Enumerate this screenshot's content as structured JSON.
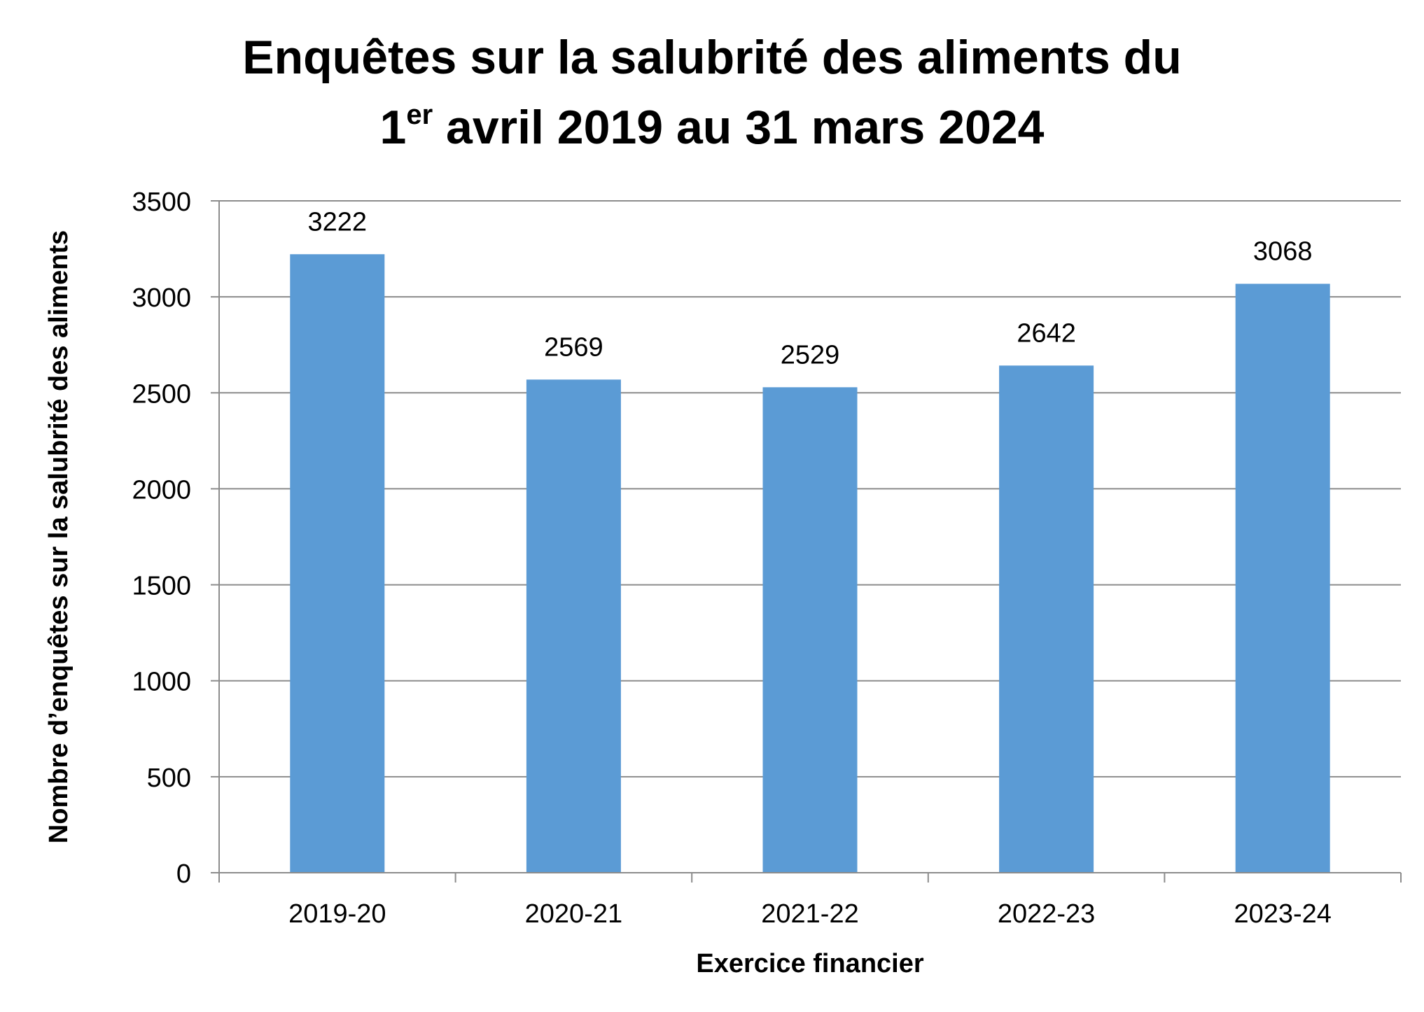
{
  "chart_data": {
    "type": "bar",
    "title": "Enquêtes sur la salubrité des aliments du 1er avril 2019 au 31 mars 2024",
    "title_line1": "Enquêtes sur la salubrité des aliments du",
    "title_line2_num": "1",
    "title_line2_sup": "er",
    "title_line2_rest": " avril 2019 au 31 mars 2024",
    "xlabel": "Exercice financier",
    "ylabel": "Nombre d’enquêtes sur la salubrité des aliments",
    "categories": [
      "2019-20",
      "2020-21",
      "2021-22",
      "2022-23",
      "2023-24"
    ],
    "values": [
      3222,
      2569,
      2529,
      2642,
      3068
    ],
    "data_labels": [
      "3222",
      "2569",
      "2529",
      "2642",
      "3068"
    ],
    "ylim": [
      0,
      3500
    ],
    "yticks": [
      0,
      500,
      1000,
      1500,
      2000,
      2500,
      3000,
      3500
    ],
    "grid": true,
    "legend": "none",
    "colors": {
      "bar": "#5B9BD5",
      "grid": "#8C8C8C",
      "axis": "#8C8C8C",
      "text": "#000000"
    }
  }
}
